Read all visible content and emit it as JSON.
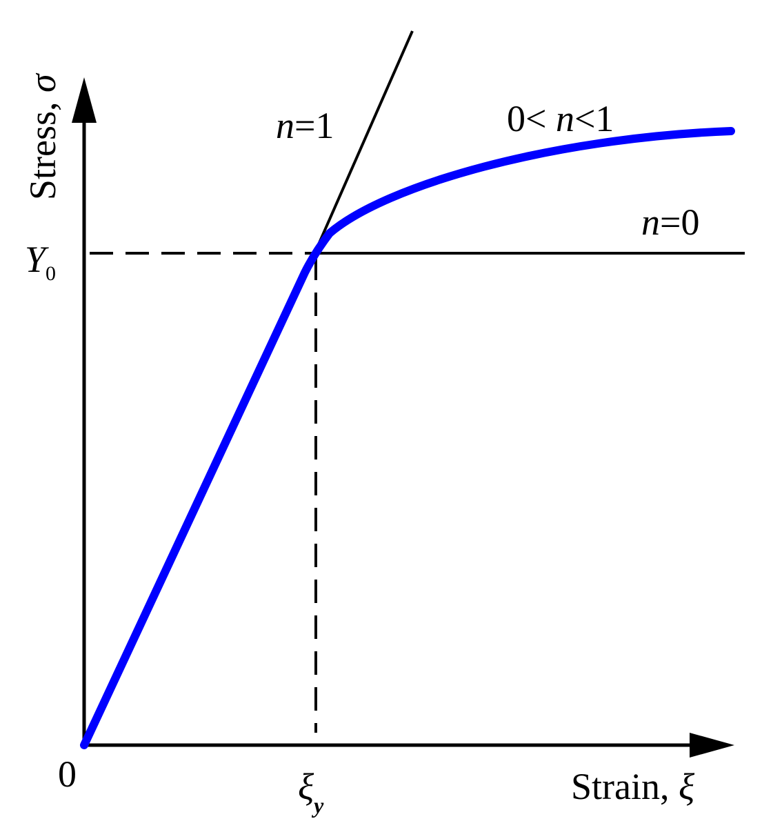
{
  "axes": {
    "y_label": {
      "text": "Stress, ",
      "symbol": "σ"
    },
    "x_label": {
      "text": "Strain, ",
      "symbol": "ξ"
    },
    "origin": "0"
  },
  "ticks": {
    "yield_stress": {
      "main": "Y",
      "sub": "0"
    },
    "yield_strain": {
      "main": "ξ",
      "sub": "y"
    }
  },
  "curves": {
    "linear": {
      "var": "n",
      "rest": "=1"
    },
    "hardening": {
      "pre": "0< ",
      "var": "n",
      "rest": "<1"
    },
    "perfect": {
      "var": "n",
      "rest": "=0"
    }
  }
}
